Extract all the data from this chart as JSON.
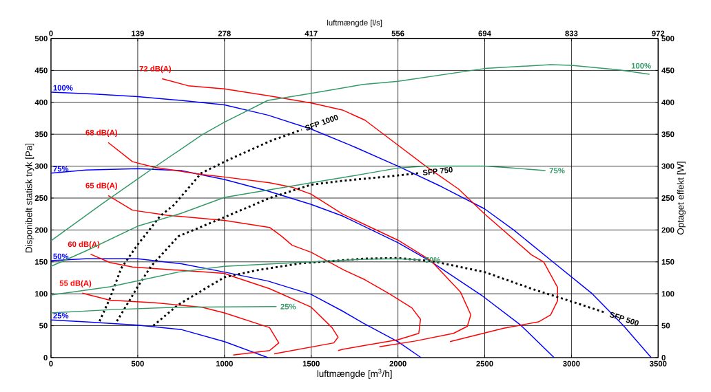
{
  "chart_data": {
    "type": "line",
    "xlabel": "luftmængde [m$^{3}$/h]",
    "x2label": "luftmængde [l/s]",
    "ylabel": "Disponibelt statisk tryk [Pa]",
    "y2label": "Optaget effekt [W]",
    "xlim": [
      0,
      3500
    ],
    "xticks": [
      0,
      500,
      1000,
      1500,
      2000,
      2500,
      3000,
      3500
    ],
    "x2lim": [
      0,
      972.22
    ],
    "x2ticks": [
      0,
      {
        "value": 138.89,
        "label": "139"
      },
      {
        "value": 277.78,
        "label": "278"
      },
      {
        "value": 416.67,
        "label": "417"
      },
      {
        "value": 555.56,
        "label": "556"
      },
      {
        "value": 694.44,
        "label": "694"
      },
      {
        "value": 833.33,
        "label": "833"
      },
      {
        "value": 972.22,
        "label": "972"
      }
    ],
    "ylim": [
      0,
      500
    ],
    "yticks": [
      0,
      50,
      100,
      150,
      200,
      250,
      300,
      350,
      400,
      450,
      500
    ],
    "y2lim": [
      0,
      500
    ],
    "y2ticks": [
      0,
      50,
      100,
      150,
      200,
      250,
      300,
      350,
      400,
      450,
      500
    ],
    "grid": true,
    "marker": "none",
    "line_style": "solid",
    "series": [
      {
        "name": "100%",
        "color": "#0000ff",
        "x": [
          0,
          250,
          500,
          750,
          1000,
          1250,
          1500,
          1750,
          2000,
          2250,
          2500,
          2667,
          2893,
          3120,
          3300,
          3460
        ],
        "values": [
          416,
          413,
          409,
          403,
          396,
          380,
          358,
          330,
          300,
          268,
          233,
          200,
          150,
          100,
          50,
          0
        ]
      },
      {
        "name": "75%",
        "color": "#0000ff",
        "x": [
          0,
          200,
          500,
          750,
          1000,
          1250,
          1500,
          1680,
          2000,
          2187,
          2480,
          2707,
          2900
        ],
        "values": [
          289,
          294,
          296,
          293,
          279,
          261,
          240,
          222,
          180,
          151,
          98,
          51,
          0
        ]
      },
      {
        "name": "50%",
        "color": "#0000ff",
        "x": [
          0,
          200,
          500,
          750,
          1000,
          1250,
          1500,
          1680,
          1800,
          2000,
          2133
        ],
        "values": [
          152,
          155,
          155,
          147,
          134,
          120,
          99,
          73,
          54,
          25,
          0
        ]
      },
      {
        "name": "25%",
        "color": "#0000ff",
        "x": [
          0,
          200,
          500,
          750,
          1000,
          1250
        ],
        "values": [
          59,
          56,
          51,
          44,
          25,
          0
        ]
      },
      {
        "name": "100%",
        "color": "#339966",
        "axis": "y2",
        "x": [
          0,
          300,
          600,
          870,
          1000,
          1250,
          1500,
          1800,
          2000,
          2500,
          2880,
          3000,
          3270,
          3450
        ],
        "values": [
          183,
          242,
          299,
          349,
          369,
          403,
          414,
          428,
          433,
          453,
          459,
          458,
          451,
          444
        ]
      },
      {
        "name": "75%",
        "color": "#339966",
        "axis": "y2",
        "x": [
          0,
          200,
          500,
          750,
          1000,
          1500,
          1680,
          2000,
          2160,
          2500,
          2620,
          2850
        ],
        "values": [
          143,
          167,
          206,
          226,
          251,
          274,
          282,
          297,
          300,
          300,
          298,
          293
        ]
      },
      {
        "name": "50%",
        "color": "#339966",
        "axis": "y2",
        "x": [
          0,
          340,
          734,
          1000,
          1500,
          1800,
          2000,
          2133
        ],
        "values": [
          98,
          111,
          134,
          143,
          150,
          154,
          155,
          153
        ]
      },
      {
        "name": "25%",
        "color": "#339966",
        "axis": "y2",
        "x": [
          0,
          340,
          734,
          1300
        ],
        "values": [
          70,
          75,
          79,
          80
        ]
      },
      {
        "name": "72 dB(A)",
        "color": "#ff0000",
        "x": [
          640,
          790,
          1000,
          1260,
          1500,
          1680,
          1810,
          2000,
          2160,
          2350,
          2500,
          2770,
          2840,
          2920,
          2920,
          2880,
          2810,
          2610,
          2300
        ],
        "values": [
          437,
          426,
          421,
          410,
          399,
          388,
          372,
          333,
          300,
          264,
          225,
          161,
          150,
          110,
          89,
          67,
          56,
          46,
          25
        ]
      },
      {
        "name": "68 dB(A)",
        "color": "#ff0000",
        "x": [
          330,
          470,
          600,
          870,
          1000,
          1260,
          1390,
          1500,
          1680,
          2000,
          2190,
          2360,
          2420,
          2400,
          2320,
          2100,
          1893
        ],
        "values": [
          337,
          307,
          298,
          287,
          283,
          274,
          267,
          256,
          225,
          184,
          152,
          103,
          67,
          49,
          38,
          26,
          17
        ]
      },
      {
        "name": "65 dB(A)",
        "color": "#ff0000",
        "x": [
          330,
          470,
          670,
          1000,
          1260,
          1330,
          1390,
          1500,
          1690,
          1810,
          1950,
          2080,
          2130,
          2120,
          2000,
          1680,
          1655
        ],
        "values": [
          254,
          231,
          223,
          215,
          204,
          190,
          176,
          165,
          137,
          122,
          100,
          78,
          60,
          38,
          28,
          13,
          11
        ]
      },
      {
        "name": "60 dB(A)",
        "color": "#ff0000",
        "x": [
          228,
          340,
          470,
          734,
          1000,
          1060,
          1260,
          1500,
          1620,
          1655,
          1630,
          1287
        ],
        "values": [
          162,
          149,
          142,
          137,
          132,
          126,
          108,
          79,
          47,
          32,
          23,
          6
        ]
      },
      {
        "name": "55 dB(A)",
        "color": "#ff0000",
        "x": [
          180,
          340,
          600,
          870,
          1000,
          1260,
          1313,
          1260,
          1050
        ],
        "values": [
          101,
          90,
          86,
          79,
          70,
          47,
          23,
          11,
          4
        ]
      },
      {
        "name": "SFP 1000",
        "color": "#000000",
        "line_style": "dotted",
        "x": [
          280,
          340,
          405,
          497,
          630,
          708,
          866,
          1000,
          1260,
          1445
        ],
        "values": [
          57,
          93,
          140,
          176,
          222,
          239,
          289,
          307,
          339,
          357
        ]
      },
      {
        "name": "SFP 750",
        "color": "#000000",
        "line_style": "dotted",
        "x": [
          380,
          500,
          576,
          734,
          1000,
          1260,
          1500,
          1680,
          1950,
          2120
        ],
        "values": [
          57,
          111,
          143,
          190,
          220,
          250,
          271,
          277,
          284,
          289
        ]
      },
      {
        "name": "SFP 500",
        "color": "#000000",
        "line_style": "dotted",
        "x": [
          590,
          734,
          1000,
          1190,
          1445,
          1800,
          2000,
          2200,
          2500,
          2780,
          3000,
          3200
        ],
        "values": [
          50,
          83,
          126,
          137,
          148,
          155,
          156,
          151,
          134,
          107,
          88,
          70
        ]
      }
    ]
  }
}
